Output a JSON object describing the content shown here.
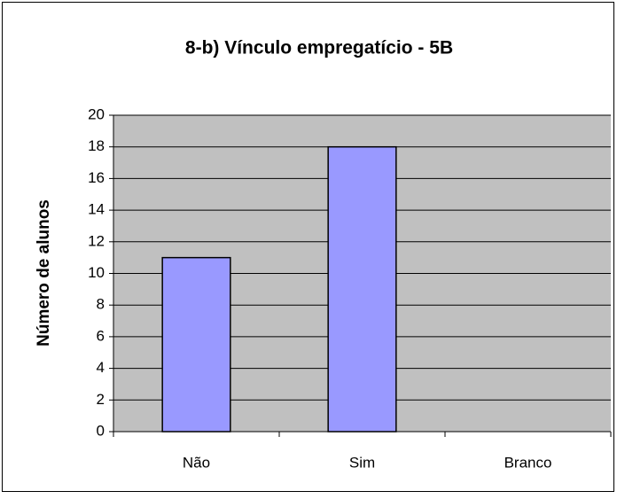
{
  "chart_data": {
    "type": "bar",
    "title": "8-b) Vínculo empregatício - 5B",
    "y_label": "Número de alunos",
    "categories": [
      "Não",
      "Sim",
      "Branco"
    ],
    "values": [
      11,
      18,
      0
    ],
    "color": "#9999ff",
    "ylim": [
      0,
      20
    ],
    "yticks": [
      0,
      2,
      4,
      6,
      8,
      10,
      12,
      14,
      16,
      18,
      20
    ],
    "grid": true
  }
}
